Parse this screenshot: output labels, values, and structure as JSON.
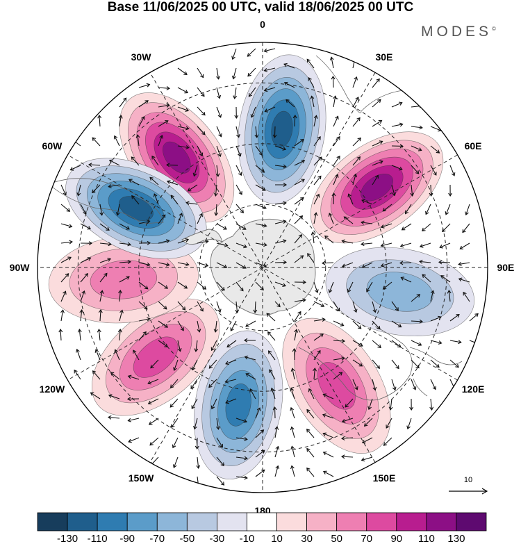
{
  "title": "Base 11/06/2025 00 UTC, valid 18/06/2025 00 UTC",
  "logo": {
    "text": "MODES",
    "mark": "©"
  },
  "map": {
    "projection": "south-polar-stereographic",
    "longitude_labels": [
      {
        "text": "0",
        "lon": 0
      },
      {
        "text": "30E",
        "lon": 30
      },
      {
        "text": "60E",
        "lon": 60
      },
      {
        "text": "90E",
        "lon": 90
      },
      {
        "text": "120E",
        "lon": 120
      },
      {
        "text": "150E",
        "lon": 150
      },
      {
        "text": "180",
        "lon": 180
      },
      {
        "text": "150W",
        "lon": -150
      },
      {
        "text": "120W",
        "lon": -120
      },
      {
        "text": "90W",
        "lon": -90
      },
      {
        "text": "60W",
        "lon": -60
      },
      {
        "text": "30W",
        "lon": -30
      }
    ],
    "anomaly_centers": [
      {
        "sign": "positive",
        "lon": -38,
        "peak": 120
      },
      {
        "sign": "negative",
        "lon": 8,
        "peak": -130
      },
      {
        "sign": "positive",
        "lon": 55,
        "peak": 120
      },
      {
        "sign": "negative",
        "lon": 100,
        "peak": -60
      },
      {
        "sign": "positive",
        "lon": 148,
        "peak": 80
      },
      {
        "sign": "negative",
        "lon": -170,
        "peak": -100
      },
      {
        "sign": "positive",
        "lon": -130,
        "peak": 90
      },
      {
        "sign": "positive",
        "lon": -95,
        "peak": 60
      },
      {
        "sign": "negative",
        "lon": -65,
        "peak": -120
      }
    ],
    "wind_reference": {
      "label": "10"
    }
  },
  "colorbar": {
    "labels": [
      "-130",
      "-110",
      "-90",
      "-70",
      "-50",
      "-30",
      "-10",
      "10",
      "30",
      "50",
      "70",
      "90",
      "110",
      "130"
    ],
    "colors": [
      "#173d5c",
      "#1f5e8c",
      "#2f7cb1",
      "#5b9cc9",
      "#8db6d9",
      "#b8c9e1",
      "#e3e3f0",
      "#ffffff",
      "#fbdcdd",
      "#f6b1c6",
      "#ee7fb2",
      "#dd4aa0",
      "#b81d8f",
      "#8c0f85",
      "#5e0a70"
    ]
  }
}
